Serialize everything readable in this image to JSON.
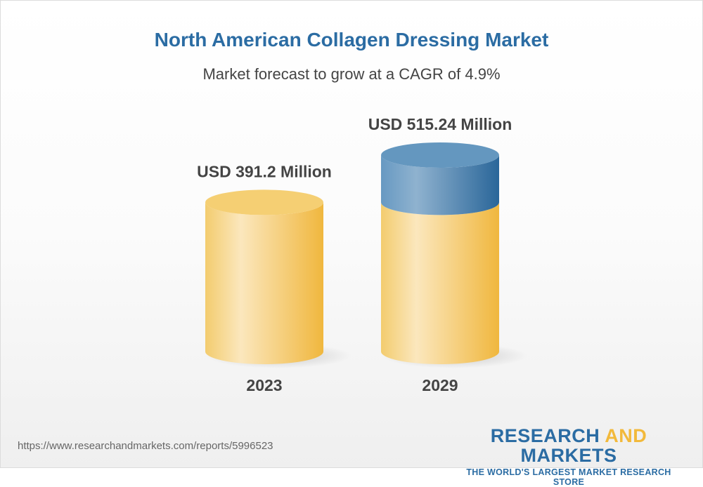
{
  "title": "North American Collagen Dressing Market",
  "subtitle": "Market forecast to grow at a CAGR of 4.9%",
  "chart_data": {
    "type": "bar",
    "style": "3d-cylinder",
    "categories": [
      "2023",
      "2029"
    ],
    "values": [
      391.2,
      515.24
    ],
    "data_labels": [
      "USD 391.2 Million",
      "USD 515.24 Million"
    ],
    "colors": {
      "base": "#f2c65a",
      "growth": "#3f7eb0"
    }
  },
  "footer": {
    "url": "https://www.researchandmarkets.com/reports/5996523",
    "logo_part1": "RESEARCH ",
    "logo_part2": "AND",
    "logo_part3": " MARKETS",
    "tagline": "THE WORLD'S LARGEST MARKET RESEARCH STORE"
  }
}
